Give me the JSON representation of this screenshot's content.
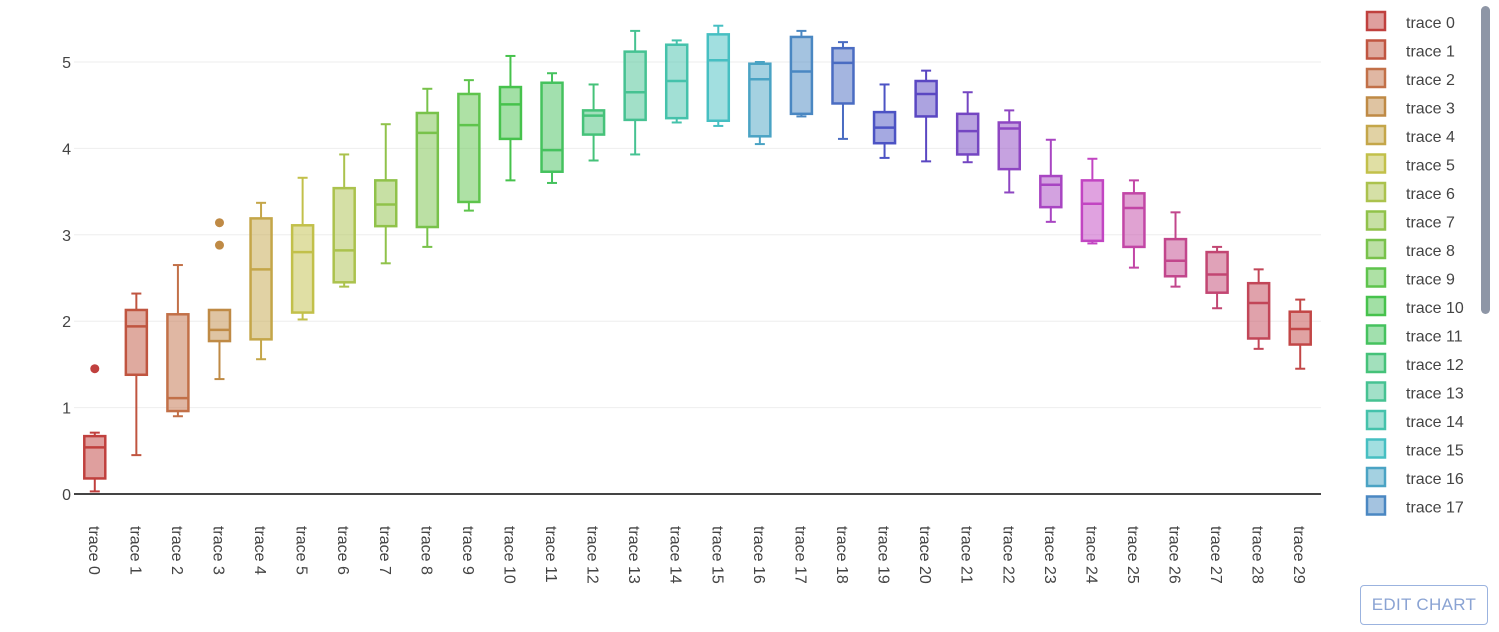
{
  "chart_data": {
    "type": "box",
    "y_ticks": [
      "0",
      "1",
      "2",
      "3",
      "4",
      "5"
    ],
    "ylim": [
      0,
      5.5
    ],
    "grid": true,
    "legend_position": "right",
    "series": [
      {
        "name": "trace 0",
        "color": "#c0403e",
        "min": 0.03,
        "q1": 0.18,
        "median": 0.54,
        "q3": 0.67,
        "max": 0.71,
        "outliers": [
          1.45
        ]
      },
      {
        "name": "trace 1",
        "color": "#c05540",
        "min": 0.45,
        "q1": 1.38,
        "median": 1.94,
        "q3": 2.13,
        "max": 2.32,
        "outliers": []
      },
      {
        "name": "trace 2",
        "color": "#c27048",
        "min": 0.9,
        "q1": 0.96,
        "median": 1.11,
        "q3": 2.08,
        "max": 2.65,
        "outliers": []
      },
      {
        "name": "trace 3",
        "color": "#bf8a45",
        "min": 1.33,
        "q1": 1.77,
        "median": 1.9,
        "q3": 2.13,
        "max": 2.13,
        "outliers": [
          2.88,
          3.14
        ]
      },
      {
        "name": "trace 4",
        "color": "#c4a649",
        "min": 1.56,
        "q1": 1.79,
        "median": 2.6,
        "q3": 3.19,
        "max": 3.37,
        "outliers": []
      },
      {
        "name": "trace 5",
        "color": "#c2c04a",
        "min": 2.02,
        "q1": 2.1,
        "median": 2.8,
        "q3": 3.11,
        "max": 3.66,
        "outliers": []
      },
      {
        "name": "trace 6",
        "color": "#abc24d",
        "min": 2.4,
        "q1": 2.45,
        "median": 2.82,
        "q3": 3.54,
        "max": 3.93,
        "outliers": []
      },
      {
        "name": "trace 7",
        "color": "#90c24a",
        "min": 2.67,
        "q1": 3.1,
        "median": 3.35,
        "q3": 3.63,
        "max": 4.28,
        "outliers": []
      },
      {
        "name": "trace 8",
        "color": "#78c24a",
        "min": 2.86,
        "q1": 3.09,
        "median": 4.18,
        "q3": 4.41,
        "max": 4.69,
        "outliers": []
      },
      {
        "name": "trace 9",
        "color": "#5ec44c",
        "min": 3.28,
        "q1": 3.38,
        "median": 4.27,
        "q3": 4.63,
        "max": 4.79,
        "outliers": []
      },
      {
        "name": "trace 10",
        "color": "#46c24c",
        "min": 3.63,
        "q1": 4.11,
        "median": 4.51,
        "q3": 4.71,
        "max": 5.07,
        "outliers": []
      },
      {
        "name": "trace 11",
        "color": "#45c25e",
        "min": 3.6,
        "q1": 3.73,
        "median": 3.98,
        "q3": 4.76,
        "max": 4.87,
        "outliers": []
      },
      {
        "name": "trace 12",
        "color": "#45c279",
        "min": 3.86,
        "q1": 4.16,
        "median": 4.38,
        "q3": 4.44,
        "max": 4.74,
        "outliers": []
      },
      {
        "name": "trace 13",
        "color": "#46c292",
        "min": 3.93,
        "q1": 4.33,
        "median": 4.65,
        "q3": 5.12,
        "max": 5.36,
        "outliers": []
      },
      {
        "name": "trace 14",
        "color": "#45c2ab",
        "min": 4.3,
        "q1": 4.35,
        "median": 4.78,
        "q3": 5.2,
        "max": 5.25,
        "outliers": []
      },
      {
        "name": "trace 15",
        "color": "#46bfc2",
        "min": 4.26,
        "q1": 4.32,
        "median": 5.02,
        "q3": 5.32,
        "max": 5.42,
        "outliers": []
      },
      {
        "name": "trace 16",
        "color": "#4aa3c4",
        "min": 4.05,
        "q1": 4.14,
        "median": 4.8,
        "q3": 4.98,
        "max": 5.0,
        "outliers": []
      },
      {
        "name": "trace 17",
        "color": "#4a87c2",
        "min": 4.37,
        "q1": 4.4,
        "median": 4.89,
        "q3": 5.29,
        "max": 5.36,
        "outliers": []
      },
      {
        "name": "trace 18",
        "color": "#4a6cc2",
        "min": 4.11,
        "q1": 4.52,
        "median": 4.99,
        "q3": 5.16,
        "max": 5.23,
        "outliers": []
      },
      {
        "name": "trace 19",
        "color": "#4c53c4",
        "min": 3.89,
        "q1": 4.06,
        "median": 4.24,
        "q3": 4.42,
        "max": 4.74,
        "outliers": []
      },
      {
        "name": "trace 20",
        "color": "#5a47c2",
        "min": 3.85,
        "q1": 4.37,
        "median": 4.63,
        "q3": 4.78,
        "max": 4.9,
        "outliers": []
      },
      {
        "name": "trace 21",
        "color": "#7446c2",
        "min": 3.84,
        "q1": 3.93,
        "median": 4.2,
        "q3": 4.4,
        "max": 4.65,
        "outliers": []
      },
      {
        "name": "trace 22",
        "color": "#8e46c2",
        "min": 3.49,
        "q1": 3.76,
        "median": 4.23,
        "q3": 4.3,
        "max": 4.44,
        "outliers": []
      },
      {
        "name": "trace 23",
        "color": "#a845c2",
        "min": 3.15,
        "q1": 3.32,
        "median": 3.58,
        "q3": 3.68,
        "max": 4.1,
        "outliers": []
      },
      {
        "name": "trace 24",
        "color": "#c245c2",
        "min": 2.9,
        "q1": 2.93,
        "median": 3.36,
        "q3": 3.63,
        "max": 3.88,
        "outliers": []
      },
      {
        "name": "trace 25",
        "color": "#c246a6",
        "min": 2.62,
        "q1": 2.86,
        "median": 3.31,
        "q3": 3.48,
        "max": 3.63,
        "outliers": []
      },
      {
        "name": "trace 26",
        "color": "#c2468c",
        "min": 2.4,
        "q1": 2.52,
        "median": 2.7,
        "q3": 2.95,
        "max": 3.26,
        "outliers": []
      },
      {
        "name": "trace 27",
        "color": "#c24672",
        "min": 2.15,
        "q1": 2.33,
        "median": 2.54,
        "q3": 2.8,
        "max": 2.86,
        "outliers": []
      },
      {
        "name": "trace 28",
        "color": "#c24658",
        "min": 1.68,
        "q1": 1.8,
        "median": 2.21,
        "q3": 2.44,
        "max": 2.6,
        "outliers": []
      },
      {
        "name": "trace 29",
        "color": "#c24646",
        "min": 1.45,
        "q1": 1.73,
        "median": 1.91,
        "q3": 2.11,
        "max": 2.25,
        "outliers": []
      }
    ],
    "legend_visible": [
      "trace 0",
      "trace 1",
      "trace 2",
      "trace 3",
      "trace 4",
      "trace 5",
      "trace 6",
      "trace 7",
      "trace 8",
      "trace 9",
      "trace 10",
      "trace 11",
      "trace 12",
      "trace 13",
      "trace 14",
      "trace 15",
      "trace 16",
      "trace 17"
    ]
  },
  "ui": {
    "edit_chart_label": "EDIT CHART"
  }
}
